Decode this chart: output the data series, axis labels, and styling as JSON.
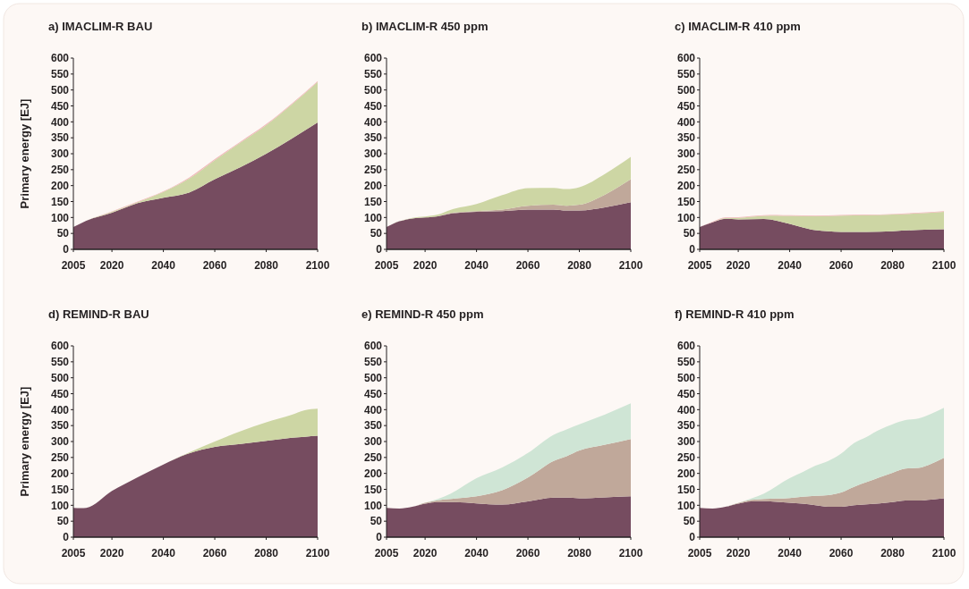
{
  "chart_data": [
    {
      "type": "area",
      "stacked": true,
      "title": "a) IMACLIM-R BAU",
      "ylabel": "Primary energy [EJ]",
      "xlim": [
        2005,
        2100
      ],
      "xticks": [
        2005,
        2020,
        2040,
        2060,
        2080,
        2100
      ],
      "ylim": [
        0,
        600
      ],
      "yticks": [
        0,
        50,
        100,
        150,
        200,
        250,
        300,
        350,
        400,
        450,
        500,
        550,
        600
      ],
      "x": [
        2005,
        2010,
        2020,
        2030,
        2040,
        2050,
        2060,
        2070,
        2080,
        2090,
        2100
      ],
      "series": [
        {
          "color": "#764c60",
          "values": [
            70,
            90,
            115,
            145,
            162,
            178,
            220,
            258,
            300,
            348,
            398
          ]
        },
        {
          "color": "#cdd6a4",
          "values": [
            0,
            0,
            3,
            3,
            18,
            44,
            60,
            77,
            90,
            107,
            127
          ]
        },
        {
          "color": "#f0b8b8",
          "values": [
            0,
            0,
            1,
            2,
            2,
            3,
            3,
            3,
            3,
            3,
            3
          ]
        }
      ]
    },
    {
      "type": "area",
      "stacked": true,
      "title": "b) IMACLIM-R 450 ppm",
      "xlim": [
        2005,
        2100
      ],
      "xticks": [
        2005,
        2020,
        2040,
        2060,
        2080,
        2100
      ],
      "ylim": [
        0,
        600
      ],
      "yticks": [
        0,
        50,
        100,
        150,
        200,
        250,
        300,
        350,
        400,
        450,
        500,
        550,
        600
      ],
      "x": [
        2005,
        2010,
        2015,
        2020,
        2025,
        2030,
        2040,
        2050,
        2060,
        2070,
        2075,
        2080,
        2090,
        2100
      ],
      "series": [
        {
          "color": "#764c60",
          "values": [
            70,
            88,
            97,
            100,
            104,
            112,
            118,
            120,
            125,
            125,
            122,
            122,
            132,
            148
          ]
        },
        {
          "color": "#c0a89a",
          "values": [
            0,
            0,
            0,
            0,
            0,
            2,
            2,
            5,
            12,
            15,
            15,
            18,
            40,
            72
          ]
        },
        {
          "color": "#cdd6a4",
          "values": [
            0,
            0,
            2,
            3,
            5,
            10,
            22,
            45,
            55,
            53,
            52,
            55,
            65,
            70
          ]
        }
      ]
    },
    {
      "type": "area",
      "stacked": true,
      "title": "c) IMACLIM-R 410 ppm",
      "xlim": [
        2005,
        2100
      ],
      "xticks": [
        2005,
        2020,
        2040,
        2060,
        2080,
        2100
      ],
      "ylim": [
        0,
        600
      ],
      "yticks": [
        0,
        50,
        100,
        150,
        200,
        250,
        300,
        350,
        400,
        450,
        500,
        550,
        600
      ],
      "x": [
        2005,
        2010,
        2015,
        2020,
        2030,
        2035,
        2040,
        2050,
        2060,
        2070,
        2080,
        2090,
        2100
      ],
      "series": [
        {
          "color": "#764c60",
          "values": [
            70,
            85,
            96,
            94,
            95,
            90,
            80,
            60,
            55,
            55,
            57,
            61,
            63
          ]
        },
        {
          "color": "#cdd6a4",
          "values": [
            0,
            0,
            2,
            5,
            10,
            16,
            25,
            44,
            51,
            52,
            52,
            52,
            55
          ]
        },
        {
          "color": "#f0b8b8",
          "values": [
            0,
            2,
            2,
            2,
            2,
            2,
            2,
            2,
            2,
            2,
            2,
            2,
            2
          ]
        }
      ]
    },
    {
      "type": "area",
      "stacked": true,
      "title": "d) REMIND-R BAU",
      "ylabel": "Primary energy [EJ]",
      "xlim": [
        2005,
        2100
      ],
      "xticks": [
        2005,
        2020,
        2040,
        2060,
        2080,
        2100
      ],
      "ylim": [
        0,
        600
      ],
      "yticks": [
        0,
        50,
        100,
        150,
        200,
        250,
        300,
        350,
        400,
        450,
        500,
        550,
        600
      ],
      "x": [
        2005,
        2008,
        2010,
        2020,
        2030,
        2040,
        2050,
        2060,
        2070,
        2080,
        2090,
        2095,
        2100
      ],
      "series": [
        {
          "color": "#764c60",
          "values": [
            92,
            91,
            92,
            145,
            188,
            228,
            263,
            283,
            292,
            302,
            312,
            315,
            318
          ]
        },
        {
          "color": "#cdd6a4",
          "values": [
            0,
            0,
            0,
            0,
            0,
            0,
            3,
            17,
            40,
            58,
            72,
            83,
            85
          ]
        }
      ]
    },
    {
      "type": "area",
      "stacked": true,
      "title": "e) REMIND-R 450 ppm",
      "xlim": [
        2005,
        2100
      ],
      "xticks": [
        2005,
        2020,
        2040,
        2060,
        2080,
        2100
      ],
      "ylim": [
        0,
        600
      ],
      "yticks": [
        0,
        50,
        100,
        150,
        200,
        250,
        300,
        350,
        400,
        450,
        500,
        550,
        600
      ],
      "x": [
        2005,
        2010,
        2015,
        2020,
        2025,
        2030,
        2040,
        2050,
        2060,
        2070,
        2075,
        2080,
        2090,
        2100
      ],
      "series": [
        {
          "color": "#764c60",
          "values": [
            92,
            90,
            95,
            105,
            110,
            110,
            106,
            102,
            112,
            124,
            124,
            122,
            125,
            128
          ]
        },
        {
          "color": "#c0a89a",
          "values": [
            0,
            0,
            0,
            3,
            6,
            10,
            22,
            45,
            75,
            115,
            130,
            150,
            165,
            180
          ]
        },
        {
          "color": "#cfe5d5",
          "values": [
            0,
            0,
            0,
            0,
            4,
            17,
            57,
            72,
            77,
            82,
            84,
            82,
            95,
            112
          ]
        }
      ]
    },
    {
      "type": "area",
      "stacked": true,
      "title": "f) REMIND-R 410 ppm",
      "xlim": [
        2005,
        2100
      ],
      "xticks": [
        2005,
        2020,
        2040,
        2060,
        2080,
        2100
      ],
      "ylim": [
        0,
        600
      ],
      "yticks": [
        0,
        50,
        100,
        150,
        200,
        250,
        300,
        350,
        400,
        450,
        500,
        550,
        600
      ],
      "x": [
        2005,
        2010,
        2015,
        2020,
        2025,
        2030,
        2040,
        2045,
        2050,
        2055,
        2060,
        2065,
        2070,
        2075,
        2080,
        2085,
        2090,
        2095,
        2100
      ],
      "series": [
        {
          "color": "#764c60",
          "values": [
            92,
            90,
            95,
            105,
            112,
            113,
            108,
            105,
            100,
            95,
            95,
            100,
            103,
            106,
            110,
            115,
            115,
            118,
            122
          ]
        },
        {
          "color": "#c0a89a",
          "values": [
            0,
            0,
            0,
            2,
            5,
            7,
            15,
            22,
            30,
            37,
            45,
            58,
            70,
            82,
            92,
            100,
            102,
            112,
            127
          ]
        },
        {
          "color": "#cfe5d5",
          "values": [
            0,
            0,
            0,
            0,
            4,
            17,
            62,
            77,
            94,
            107,
            122,
            137,
            142,
            149,
            152,
            152,
            155,
            157,
            157
          ]
        }
      ]
    }
  ]
}
